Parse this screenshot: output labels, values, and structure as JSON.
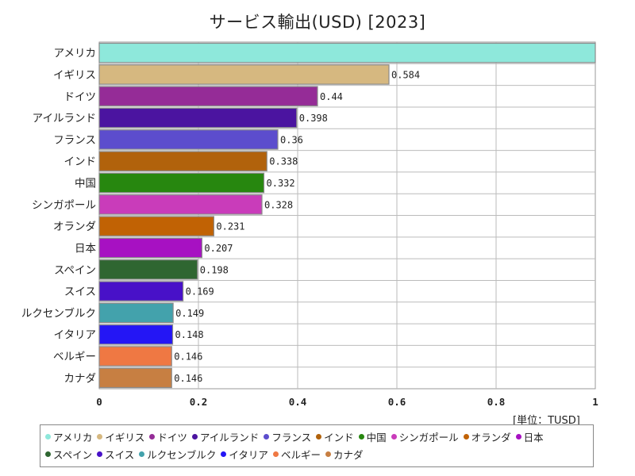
{
  "chart_data": {
    "type": "bar",
    "orientation": "horizontal",
    "title": "サービス輸出(USD) [2023]",
    "unit_label": "[単位：TUSD]",
    "categories": [
      "アメリカ",
      "イギリス",
      "ドイツ",
      "アイルランド",
      "フランス",
      "インド",
      "中国",
      "シンガポール",
      "オランダ",
      "日本",
      "スペイン",
      "スイス",
      "ルクセンブルク",
      "イタリア",
      "ベルギー",
      "カナダ"
    ],
    "values": [
      1,
      0.584,
      0.44,
      0.398,
      0.36,
      0.338,
      0.332,
      0.328,
      0.231,
      0.207,
      0.198,
      0.169,
      0.149,
      0.148,
      0.146,
      0.146
    ],
    "value_labels": [
      "",
      "0.584",
      "0.44",
      "0.398",
      "0.36",
      "0.338",
      "0.332",
      "0.328",
      "0.231",
      "0.207",
      "0.198",
      "0.169",
      "0.149",
      "0.148",
      "0.146",
      "0.146"
    ],
    "colors": [
      "#8ee8db",
      "#d6b880",
      "#952c97",
      "#4b14a0",
      "#5c4dcd",
      "#b1620c",
      "#27870f",
      "#c93cba",
      "#c16204",
      "#a711c2",
      "#2f6631",
      "#4811c8",
      "#43a2ac",
      "#2416f5",
      "#ef7843",
      "#c77f42"
    ],
    "xlim": [
      0,
      1
    ],
    "xticks": [
      0,
      0.2,
      0.4,
      0.6,
      0.8,
      1
    ],
    "xtick_labels": [
      "0",
      "0.2",
      "0.4",
      "0.6",
      "0.8",
      "1"
    ],
    "grid": true,
    "legend_position": "bottom"
  }
}
